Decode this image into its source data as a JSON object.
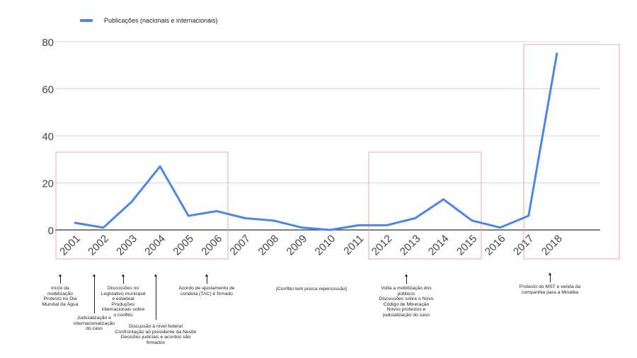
{
  "chart_data": {
    "type": "line",
    "title": "",
    "xlabel": "",
    "ylabel": "",
    "ylim": [
      0,
      80
    ],
    "yticks": [
      0,
      20,
      40,
      60,
      80
    ],
    "grid": true,
    "legend_position": "top-left",
    "categories": [
      "2001",
      "2002",
      "2003",
      "2004",
      "2005",
      "2006",
      "2007",
      "2008",
      "2009",
      "2010",
      "2011",
      "2012",
      "2013",
      "2014",
      "2015",
      "2016",
      "2017",
      "2018"
    ],
    "series": [
      {
        "name": "Publicações (nacionais e internacionais)",
        "color": "#4a86e8",
        "values": [
          3,
          1,
          12,
          27,
          6,
          8,
          5,
          4,
          1,
          0,
          2,
          2,
          5,
          13,
          4,
          1,
          6,
          75
        ]
      }
    ],
    "highlight_boxes": [
      {
        "from": "2001",
        "to": "2006",
        "color": "#f4a3a3"
      },
      {
        "from": "2012",
        "to": "2015",
        "color": "#f4a3a3"
      },
      {
        "from": "2017",
        "to": "2018",
        "color": "#f4a3a3"
      }
    ],
    "annotations": [
      {
        "year": "2001",
        "text": "Início da mobilização\nProtesto no Dia Mundial da Água"
      },
      {
        "year": "2002",
        "text": "Judicialização e internacionalização do caso"
      },
      {
        "year": "2003",
        "text": "Discussões no Legislativo municipal e estadual\nProduções internacionais sobre o conflito"
      },
      {
        "year": "2004",
        "text": "Discussão à nível federal\nConfrontação ao presidente da Nestlé\nDecisões judiciais e acordos são firmados"
      },
      {
        "year": "2006",
        "text": "Acordo de ajustamento de conduta (TAC) é firmado"
      },
      {
        "year": "2007-2011",
        "text": "[Conflito tem pouca repercussão]"
      },
      {
        "year": "2013",
        "text": "Volta a mobilização dos públicos\nDiscussões sobre o Novo Código de Mineração\nNovos protestos e judicialização do caso"
      },
      {
        "year": "2018",
        "text": "Protesto do MST e venda da companhia para a Minalba"
      }
    ]
  },
  "legend": {
    "label": "Publicações (nacionais e internacionais)"
  },
  "annotations": {
    "a2001": [
      "Início da",
      "mobilização",
      "Protesto no Dia",
      "Mundial da Água"
    ],
    "a2002": [
      "Judicialização e",
      "internacionalização",
      "do caso"
    ],
    "a2003": [
      "Discussões no",
      "Legislativo municipal",
      "e estadual",
      "Produções",
      "internacionais sobre",
      "o conflito"
    ],
    "a2004": [
      "Discussão à nível federal",
      "Confrontação ao presidente da Nestlé",
      "Decisões judiciais e acordos são",
      "firmados"
    ],
    "a2006": [
      "Acordo de ajustamento de",
      "conduta (TAC) é firmado"
    ],
    "quiet": [
      "[Conflito tem pouca repercussão]"
    ],
    "a2013": [
      "Volta a mobilização dos",
      "públicos",
      "Discussões sobre o Novo",
      "Código de Mineração",
      "Novos protestos e",
      "judicialização do caso"
    ],
    "a2018": [
      "Protesto do MST e venda da",
      "companhia para a Minalba"
    ]
  }
}
